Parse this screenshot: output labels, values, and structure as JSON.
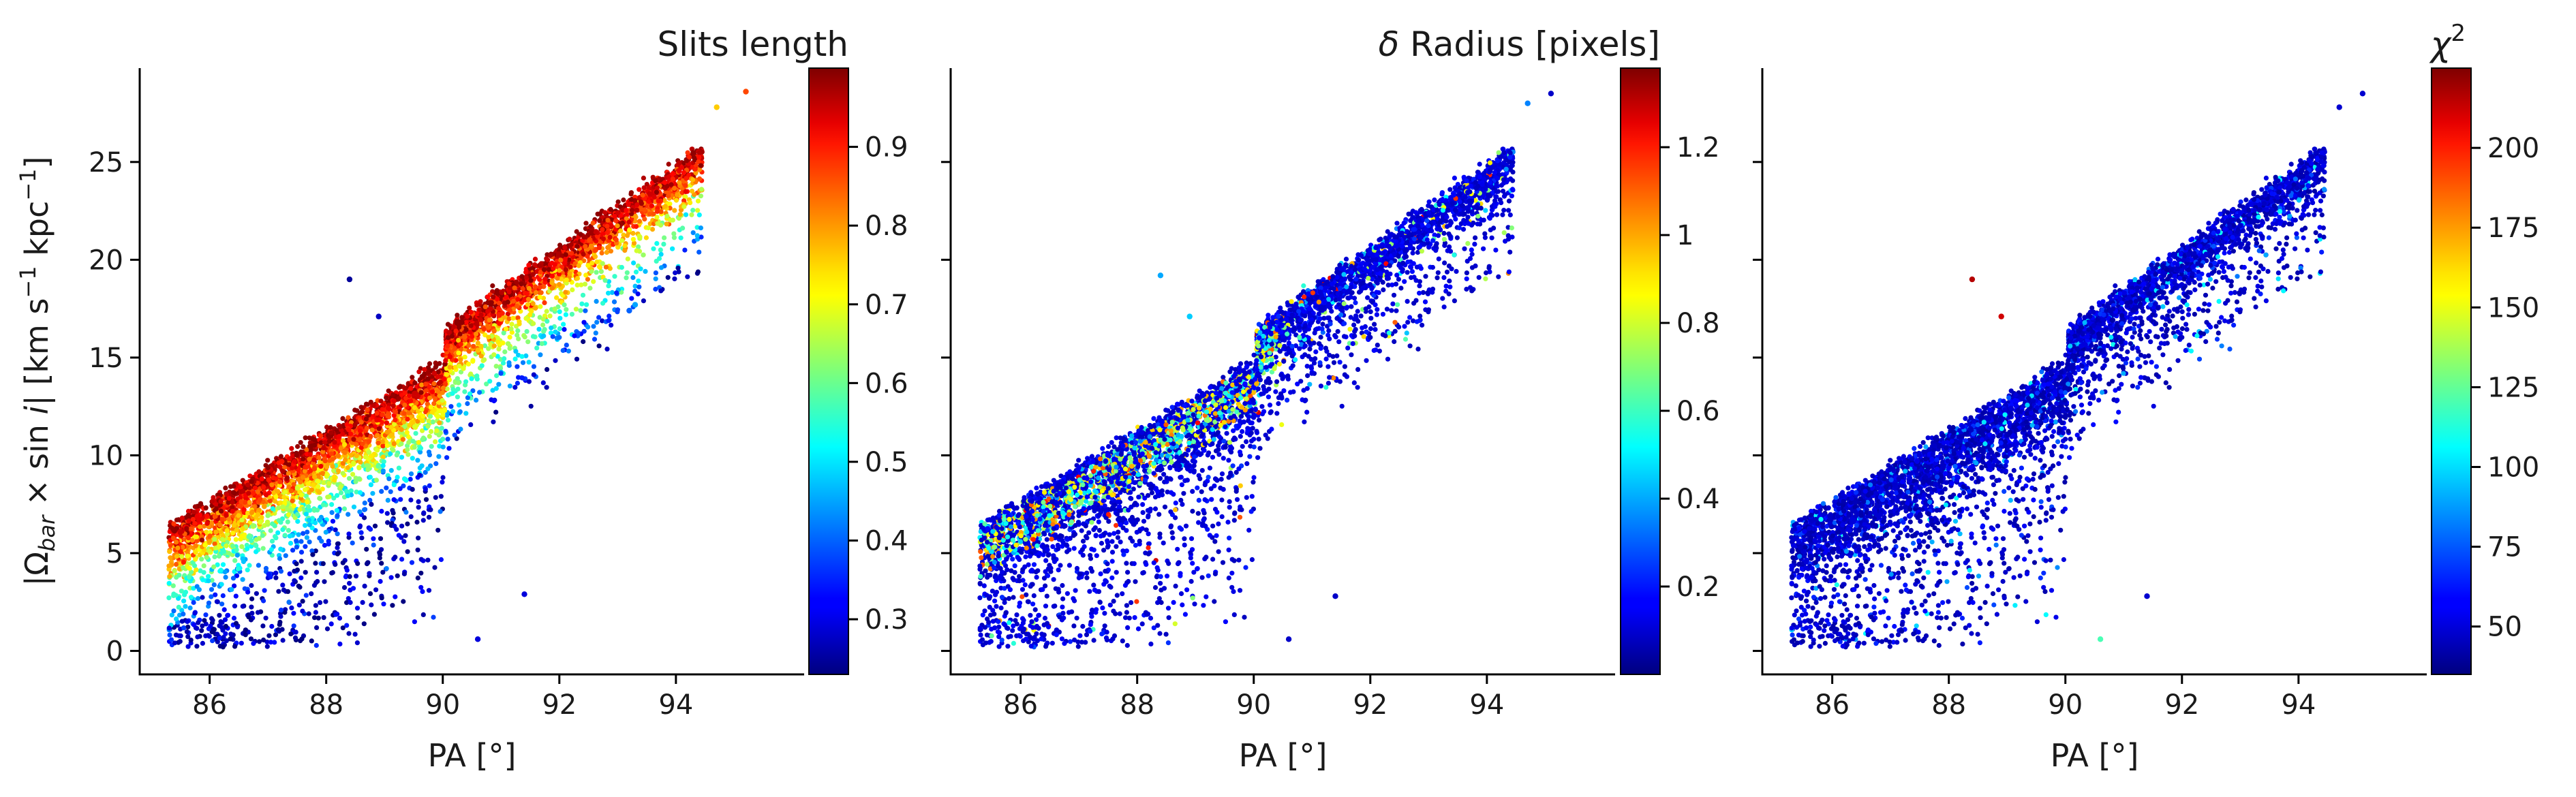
{
  "chart_data": [
    {
      "type": "scatter",
      "panel": "left",
      "xlabel": "PA [°]",
      "ylabel": "|Ω_bar × sin i|   [km s⁻¹ kpc⁻¹]",
      "ylabel_parts": {
        "open": "|Ω",
        "sub": "bar",
        "mid": " × sin ",
        "ital": "i",
        "close": "|   [km s",
        "sup1": "−1",
        "kpc": " kpc",
        "sup2": "−1",
        "end": "]"
      },
      "xlim": [
        84.8,
        96.2
      ],
      "ylim": [
        -1.2,
        29.8
      ],
      "xticks": [
        86,
        88,
        90,
        92,
        94
      ],
      "yticks": [
        0,
        5,
        10,
        15,
        20,
        25
      ],
      "colorbar": {
        "title": "Slits length",
        "range": [
          0.23,
          1.0
        ],
        "ticks": [
          0.3,
          0.4,
          0.5,
          0.6,
          0.7,
          0.8,
          0.9
        ],
        "colormap": "jet"
      },
      "color_pattern": "long slits (red) along upper edge, short slits (blue/cyan) in the lower scatter",
      "outliers": [
        [
          88.4,
          19.0,
          0.25
        ],
        [
          88.9,
          17.1,
          0.28
        ],
        [
          93.2,
          17.4,
          0.4
        ],
        [
          93.3,
          17.7,
          0.45
        ],
        [
          95.2,
          28.6,
          0.85
        ],
        [
          94.7,
          27.8,
          0.75
        ],
        [
          91.4,
          2.9,
          0.3
        ],
        [
          90.6,
          0.6,
          0.3
        ]
      ]
    },
    {
      "type": "scatter",
      "panel": "middle",
      "xlabel": "PA [°]",
      "xlim": [
        84.8,
        96.2
      ],
      "ylim": [
        -1.2,
        29.8
      ],
      "xticks": [
        86,
        88,
        90,
        92,
        94
      ],
      "yticks": [
        0,
        5,
        10,
        15,
        20,
        25
      ],
      "colorbar": {
        "title": "δ Radius [pixels]",
        "title_parts": {
          "greek": "δ",
          "rest": " Radius [pixels]"
        },
        "range": [
          0.0,
          1.38
        ],
        "ticks": [
          0.2,
          0.4,
          0.6,
          0.8,
          1.0,
          1.2
        ],
        "colormap": "jet"
      },
      "color_pattern": "mostly low (blue), cyan-green-yellow band along mid-upper edge of lower branch",
      "outliers": [
        [
          88.4,
          19.2,
          0.4
        ],
        [
          88.9,
          17.1,
          0.45
        ],
        [
          95.1,
          28.5,
          0.1
        ],
        [
          94.7,
          28.0,
          0.35
        ],
        [
          91.4,
          2.8,
          0.1
        ],
        [
          90.6,
          0.6,
          0.1
        ]
      ]
    },
    {
      "type": "scatter",
      "panel": "right",
      "xlabel": "PA [°]",
      "xlim": [
        84.8,
        96.2
      ],
      "ylim": [
        -1.2,
        29.8
      ],
      "xticks": [
        86,
        88,
        90,
        92,
        94
      ],
      "yticks": [
        0,
        5,
        10,
        15,
        20,
        25
      ],
      "colorbar": {
        "title": "χ²",
        "title_parts": {
          "greek": "χ",
          "sup": "2"
        },
        "range": [
          35,
          225
        ],
        "ticks": [
          50,
          75,
          100,
          125,
          150,
          175,
          200
        ],
        "colormap": "jet"
      },
      "color_pattern": "nearly all low χ² (blue), sparse light-blue points",
      "outliers": [
        [
          88.4,
          19.0,
          215
        ],
        [
          88.9,
          17.1,
          210
        ],
        [
          95.1,
          28.5,
          50
        ],
        [
          94.7,
          27.8,
          50
        ],
        [
          91.4,
          2.8,
          50
        ],
        [
          90.6,
          0.6,
          120
        ]
      ]
    }
  ]
}
